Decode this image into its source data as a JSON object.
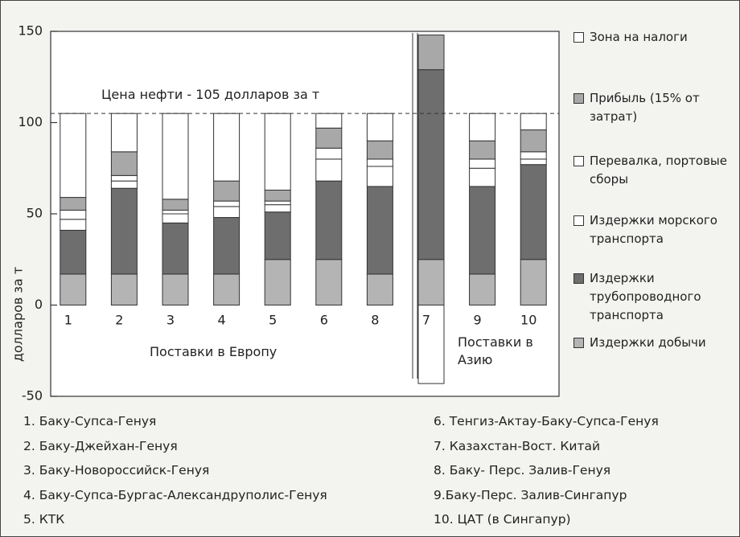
{
  "chart_data": {
    "type": "bar",
    "stacked": true,
    "categories": [
      "1",
      "2",
      "3",
      "4",
      "5",
      "6",
      "8",
      "7",
      "9",
      "10"
    ],
    "series": [
      {
        "name": "Издержки добычи",
        "color": "#b4b4b4",
        "values": [
          17,
          17,
          17,
          17,
          25,
          25,
          17,
          25,
          17,
          25
        ]
      },
      {
        "name": "Издержки трубопроводного транспорта",
        "color": "#6e6e6e",
        "values": [
          24,
          47,
          28,
          31,
          26,
          43,
          48,
          104,
          48,
          52
        ]
      },
      {
        "name": "Издержки морского транспорта",
        "color": "#ffffff",
        "values": [
          6,
          4,
          5,
          6,
          4,
          12,
          11,
          0,
          10,
          3
        ]
      },
      {
        "name": "Перевалка, портовые сборы",
        "color": "#ffffff",
        "values": [
          5,
          3,
          2,
          3,
          2,
          6,
          4,
          0,
          5,
          4
        ]
      },
      {
        "name": "Прибыль (15% от затрат)",
        "color": "#a8a8a8",
        "values": [
          7,
          13,
          6,
          11,
          6,
          11,
          10,
          19,
          10,
          12
        ]
      },
      {
        "name": "Зона на налоги",
        "color": "#ffffff",
        "values": [
          46,
          21,
          47,
          37,
          42,
          8,
          15,
          -43,
          15,
          9
        ]
      }
    ],
    "ylim": [
      -50,
      150
    ],
    "yticks": [
      -50,
      0,
      50,
      100,
      150
    ],
    "ylabel": "долларов за т",
    "price_line": 105,
    "annotations": [
      "Цена нефти - 105 долларов за т",
      "Поставки в Европу",
      "Поставки в Азию"
    ],
    "notes": [
      "1. Баку-Супса-Генуя",
      "2. Баку-Джейхан-Генуя",
      "3. Баку-Новороссийск-Генуя",
      "4. Баку-Супса-Бургас-Александруполис-Генуя",
      "5. КТК",
      "6. Тенгиз-Актау-Баку-Супса-Генуя",
      "7. Казахстан-Вост. Китай",
      "8. Баку- Перс. Залив-Генуя",
      "9.Баку-Перс. Залив-Сингапур",
      "10. ЦАТ (в Сингапур)"
    ]
  }
}
